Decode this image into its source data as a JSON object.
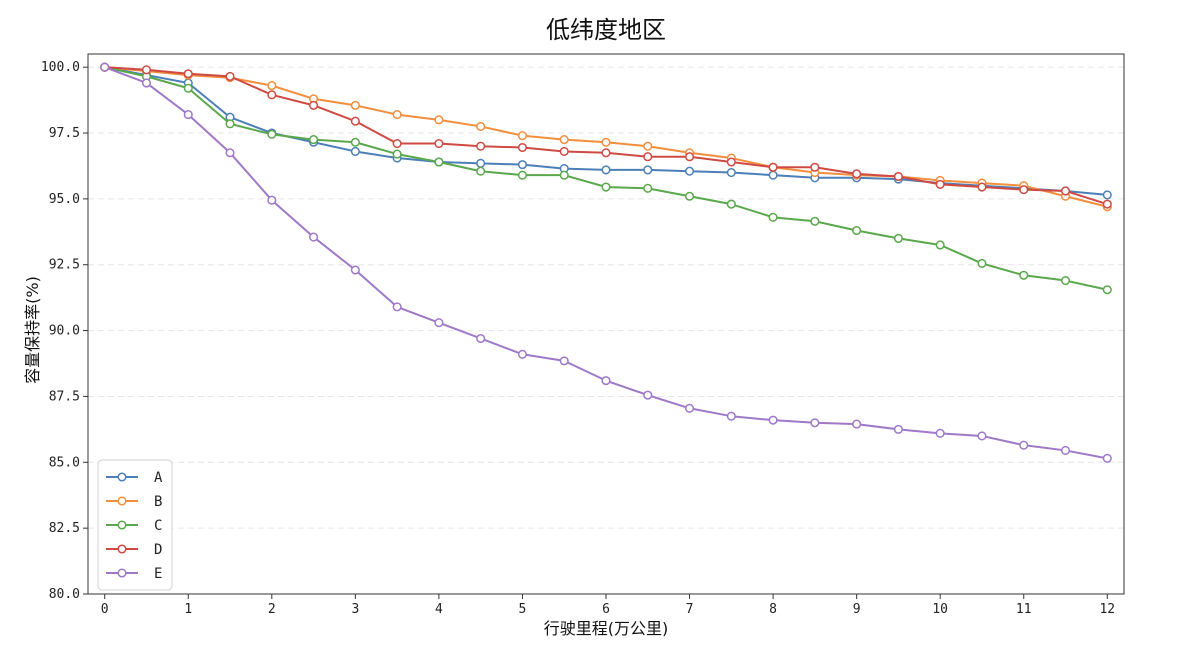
{
  "chart_data": {
    "type": "line",
    "title": "低纬度地区",
    "xlabel": "行驶里程(万公里)",
    "ylabel": "容量保持率(%)",
    "xlim": [
      -0.2,
      12.2
    ],
    "ylim": [
      80.0,
      100.5
    ],
    "xticks": [
      "0",
      "1",
      "2",
      "3",
      "4",
      "5",
      "6",
      "7",
      "8",
      "9",
      "10",
      "11",
      "12"
    ],
    "yticks": [
      "80.0",
      "82.5",
      "85.0",
      "87.5",
      "90.0",
      "92.5",
      "95.0",
      "97.5",
      "100.0"
    ],
    "grid": "horizontal-dashed",
    "legend_position": "lower-left",
    "x": [
      0,
      0.5,
      1,
      1.5,
      2,
      2.5,
      3,
      3.5,
      4,
      4.5,
      5,
      5.5,
      6,
      6.5,
      7,
      7.5,
      8,
      8.5,
      9,
      9.5,
      10,
      10.5,
      11,
      11.5,
      12
    ],
    "series": [
      {
        "name": "A",
        "color": "#4c7fb8",
        "values": [
          100.0,
          99.7,
          99.4,
          98.1,
          97.5,
          97.15,
          96.8,
          96.55,
          96.4,
          96.35,
          96.3,
          96.15,
          96.1,
          96.1,
          96.05,
          96.0,
          95.9,
          95.8,
          95.8,
          95.75,
          95.6,
          95.5,
          95.4,
          95.3,
          95.15
        ]
      },
      {
        "name": "B",
        "color": "#f28e3c",
        "values": [
          100.0,
          99.85,
          99.7,
          99.6,
          99.3,
          98.8,
          98.55,
          98.2,
          98.0,
          97.75,
          97.4,
          97.25,
          97.15,
          97.0,
          96.75,
          96.55,
          96.2,
          96.0,
          95.9,
          95.85,
          95.7,
          95.6,
          95.5,
          95.1,
          94.7
        ]
      },
      {
        "name": "C",
        "color": "#59a84b",
        "values": [
          100.0,
          99.65,
          99.2,
          97.85,
          97.45,
          97.25,
          97.15,
          96.7,
          96.4,
          96.05,
          95.9,
          95.9,
          95.45,
          95.4,
          95.1,
          94.8,
          94.3,
          94.15,
          93.8,
          93.5,
          93.25,
          92.55,
          92.1,
          91.9,
          91.55
        ]
      },
      {
        "name": "D",
        "color": "#cf4a43",
        "values": [
          100.0,
          99.9,
          99.75,
          99.65,
          98.95,
          98.55,
          97.95,
          97.1,
          97.1,
          97.0,
          96.95,
          96.8,
          96.75,
          96.6,
          96.6,
          96.4,
          96.2,
          96.2,
          95.95,
          95.85,
          95.55,
          95.45,
          95.35,
          95.3,
          94.8
        ]
      },
      {
        "name": "E",
        "color": "#9e79c8",
        "values": [
          100.0,
          99.4,
          98.2,
          96.75,
          94.95,
          93.55,
          92.3,
          90.9,
          90.3,
          89.7,
          89.1,
          88.85,
          88.1,
          87.55,
          87.05,
          86.75,
          86.6,
          86.5,
          86.45,
          86.25,
          86.1,
          86.0,
          85.65,
          85.45,
          85.15
        ]
      }
    ]
  }
}
